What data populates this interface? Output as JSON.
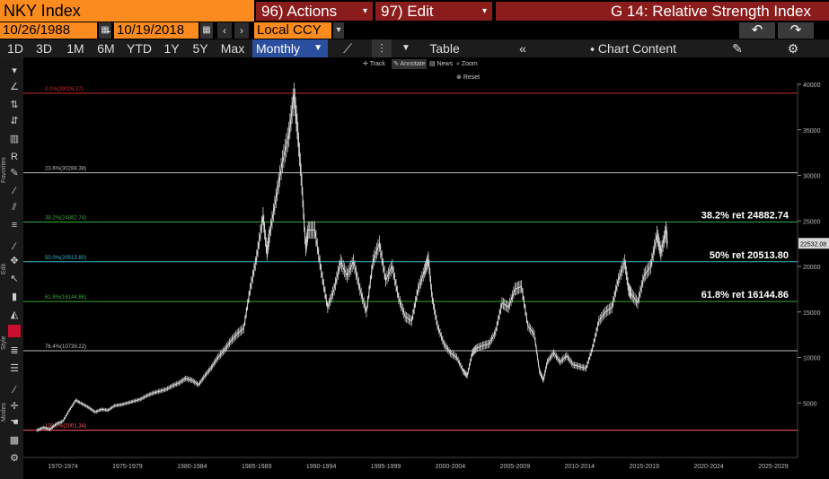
{
  "header": {
    "ticker": "NKY Index",
    "actions_label": "96) Actions",
    "edit_label": "97) Edit",
    "function_title": "G 14: Relative Strength Index"
  },
  "dates": {
    "start": "10/26/1988",
    "separator": "-",
    "end": "10/19/2018",
    "currency": "Local CCY"
  },
  "range_buttons": [
    "1D",
    "3D",
    "1M",
    "6M",
    "YTD",
    "1Y",
    "5Y",
    "Max"
  ],
  "period": "Monthly",
  "toolbar": {
    "table_label": "Table",
    "chart_content_label": "Chart Content"
  },
  "mini_toolbar": {
    "track": "Track",
    "annotate": "Annotate",
    "news": "News",
    "zoom": "Zoom",
    "reset": "Reset"
  },
  "left_labels": {
    "favorites": "Favorites",
    "edit": "Edit",
    "style": "Style",
    "modes": "Modes"
  },
  "colors": {
    "orange": "#fb8b1e",
    "dark_red": "#8b1c1c",
    "blue": "#2b4f9e",
    "fib_red": "#cc2a2a",
    "fib_white": "#bdbdbd",
    "fib_green": "#3aa63a",
    "fib_cyan": "#3ab4c8",
    "price_line": "#e6e6e6"
  },
  "chart_data": {
    "type": "line",
    "series": [
      {
        "values": [
          [
            1970.0,
            2000
          ],
          [
            1970.5,
            2300
          ],
          [
            1971.0,
            2100
          ],
          [
            1971.5,
            2700
          ],
          [
            1972.0,
            3000
          ],
          [
            1972.5,
            4200
          ],
          [
            1973.0,
            5300
          ],
          [
            1973.5,
            4900
          ],
          [
            1974.0,
            4500
          ],
          [
            1974.5,
            4000
          ],
          [
            1975.0,
            4300
          ],
          [
            1975.5,
            4200
          ],
          [
            1976.0,
            4700
          ],
          [
            1976.5,
            4800
          ],
          [
            1977.0,
            5000
          ],
          [
            1977.5,
            5200
          ],
          [
            1978.0,
            5400
          ],
          [
            1978.5,
            5800
          ],
          [
            1979.0,
            6100
          ],
          [
            1979.5,
            6300
          ],
          [
            1980.0,
            6500
          ],
          [
            1980.5,
            6900
          ],
          [
            1981.0,
            7200
          ],
          [
            1981.5,
            7700
          ],
          [
            1982.0,
            7500
          ],
          [
            1982.5,
            7000
          ],
          [
            1983.0,
            8000
          ],
          [
            1983.5,
            8900
          ],
          [
            1984.0,
            10000
          ],
          [
            1984.5,
            10800
          ],
          [
            1985.0,
            11800
          ],
          [
            1985.5,
            12600
          ],
          [
            1986.0,
            13200
          ],
          [
            1986.5,
            17500
          ],
          [
            1987.0,
            21000
          ],
          [
            1987.5,
            25500
          ],
          [
            1987.8,
            21500
          ],
          [
            1988.0,
            23500
          ],
          [
            1988.5,
            27500
          ],
          [
            1989.0,
            31500
          ],
          [
            1989.5,
            34500
          ],
          [
            1989.9,
            38915
          ],
          [
            1990.2,
            34500
          ],
          [
            1990.5,
            29000
          ],
          [
            1990.8,
            22000
          ],
          [
            1991.0,
            24000
          ],
          [
            1991.5,
            24000
          ],
          [
            1992.0,
            19500
          ],
          [
            1992.5,
            15500
          ],
          [
            1993.0,
            17500
          ],
          [
            1993.5,
            20500
          ],
          [
            1994.0,
            19000
          ],
          [
            1994.5,
            20500
          ],
          [
            1995.0,
            17500
          ],
          [
            1995.5,
            15000
          ],
          [
            1996.0,
            20500
          ],
          [
            1996.5,
            22500
          ],
          [
            1997.0,
            18500
          ],
          [
            1997.5,
            20000
          ],
          [
            1998.0,
            16500
          ],
          [
            1998.5,
            14500
          ],
          [
            1999.0,
            14000
          ],
          [
            1999.5,
            17500
          ],
          [
            2000.0,
            19500
          ],
          [
            2000.3,
            20800
          ],
          [
            2000.6,
            16500
          ],
          [
            2001.0,
            13500
          ],
          [
            2001.5,
            11500
          ],
          [
            2002.0,
            10500
          ],
          [
            2002.5,
            10000
          ],
          [
            2003.0,
            8500
          ],
          [
            2003.3,
            8000
          ],
          [
            2003.7,
            10500
          ],
          [
            2004.0,
            11000
          ],
          [
            2004.5,
            11300
          ],
          [
            2005.0,
            11500
          ],
          [
            2005.5,
            12800
          ],
          [
            2006.0,
            16000
          ],
          [
            2006.5,
            15500
          ],
          [
            2007.0,
            17500
          ],
          [
            2007.5,
            17800
          ],
          [
            2008.0,
            13500
          ],
          [
            2008.5,
            12500
          ],
          [
            2008.9,
            8500
          ],
          [
            2009.2,
            7500
          ],
          [
            2009.5,
            9500
          ],
          [
            2010.0,
            10500
          ],
          [
            2010.5,
            9500
          ],
          [
            2011.0,
            10200
          ],
          [
            2011.5,
            9200
          ],
          [
            2012.0,
            9000
          ],
          [
            2012.5,
            8800
          ],
          [
            2013.0,
            11000
          ],
          [
            2013.5,
            14000
          ],
          [
            2014.0,
            15000
          ],
          [
            2014.5,
            15500
          ],
          [
            2015.0,
            18500
          ],
          [
            2015.5,
            20500
          ],
          [
            2015.8,
            17500
          ],
          [
            2016.0,
            17000
          ],
          [
            2016.5,
            16000
          ],
          [
            2017.0,
            19000
          ],
          [
            2017.5,
            20000
          ],
          [
            2018.0,
            23500
          ],
          [
            2018.3,
            21500
          ],
          [
            2018.7,
            24000
          ],
          [
            2018.8,
            22532
          ]
        ]
      }
    ],
    "x_range": [
      1966,
      2030
    ],
    "y_range": [
      0,
      40000
    ],
    "x_tick_labels": [
      "1970-1974",
      "1975-1979",
      "1980-1984",
      "1985-1989",
      "1990-1994",
      "1995-1999",
      "2000-2004",
      "2005-2009",
      "2010-2014",
      "2015-2019",
      "2020-2024",
      "2025-2029"
    ],
    "y_ticks": [
      5000,
      10000,
      15000,
      20000,
      25000,
      30000,
      35000,
      40000
    ],
    "last_price": "22532.08",
    "fib_levels": [
      {
        "value": 39026.37,
        "label": "0.0%(39026.37)",
        "color": "#cc2a2a"
      },
      {
        "value": 30288.38,
        "label": "23.6%(30288.38)",
        "color": "#bdbdbd"
      },
      {
        "value": 24882.74,
        "label": "38.2%(24882.74)",
        "color": "#3aa63a",
        "ann": "38.2% ret 24882.74"
      },
      {
        "value": 20513.8,
        "label": "50.0%(20513.80)",
        "color": "#3ab4c8",
        "ann": "50% ret 20513.80"
      },
      {
        "value": 16144.86,
        "label": "61.8%(16144.86)",
        "color": "#3aa63a",
        "ann": "61.8% ret 16144.86"
      },
      {
        "value": 10739.22,
        "label": "76.4%(10739.22)",
        "color": "#bdbdbd"
      },
      {
        "value": 2001.34,
        "label": "100.0%(2001.34)",
        "color": "#ff5a5a"
      }
    ]
  }
}
